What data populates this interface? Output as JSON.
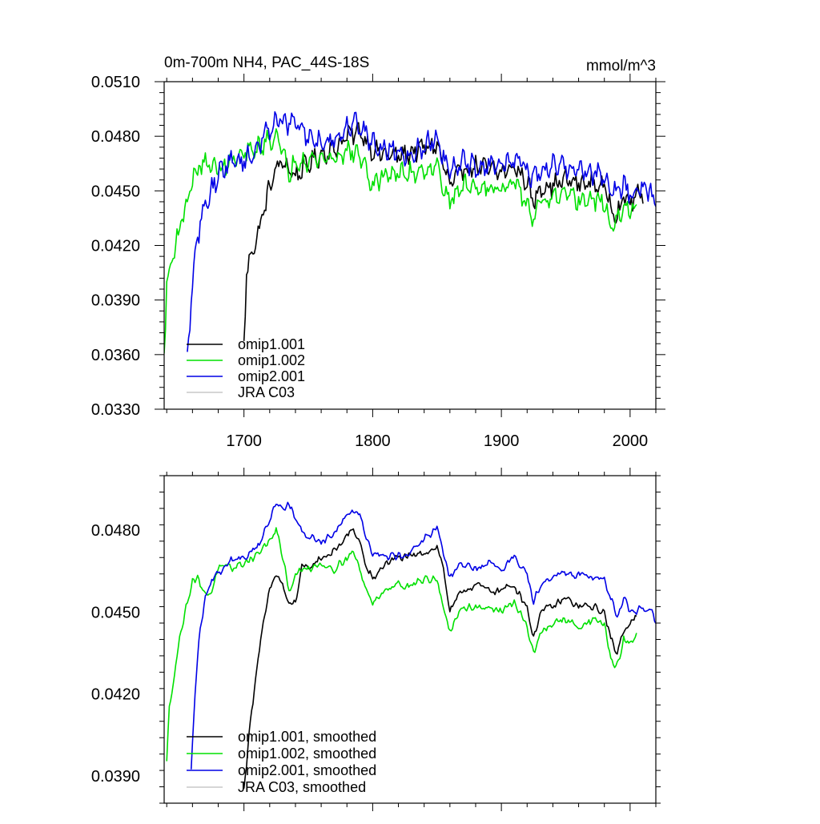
{
  "chart_data": [
    {
      "type": "line",
      "title": "0m-700m NH4, PAC_44S-18S",
      "units": "mmol/m^3",
      "xlabel": "",
      "ylabel": "",
      "xlim": [
        1638,
        2020
      ],
      "ylim": [
        0.033,
        0.051
      ],
      "xticks": [
        1700,
        1800,
        1900,
        2000
      ],
      "xtick_labels": [
        "1700",
        "1800",
        "1900",
        "2000"
      ],
      "yticks": [
        0.033,
        0.036,
        0.039,
        0.042,
        0.045,
        0.048,
        0.051
      ],
      "ytick_labels": [
        "0.0330",
        "0.0360",
        "0.0390",
        "0.0420",
        "0.0450",
        "0.0480",
        "0.0510"
      ],
      "legend_position": "bottom-left",
      "series": [
        {
          "name": "omip1.001",
          "color": "#000000",
          "noise": 0.0007,
          "x": [
            1700,
            1702,
            1705,
            1710,
            1715,
            1720,
            1725,
            1730,
            1740,
            1750,
            1760,
            1770,
            1780,
            1790,
            1800,
            1810,
            1820,
            1830,
            1840,
            1850,
            1860,
            1870,
            1880,
            1890,
            1900,
            1910,
            1920,
            1925,
            1930,
            1940,
            1950,
            1960,
            1970,
            1980,
            1985,
            1990,
            1995,
            2000,
            2005,
            2010
          ],
          "values": [
            0.0366,
            0.0405,
            0.0414,
            0.0424,
            0.0438,
            0.0452,
            0.0462,
            0.0466,
            0.0458,
            0.0465,
            0.047,
            0.0473,
            0.048,
            0.0483,
            0.0472,
            0.047,
            0.0469,
            0.0471,
            0.0474,
            0.0475,
            0.0453,
            0.0462,
            0.0463,
            0.0462,
            0.046,
            0.0463,
            0.0455,
            0.0443,
            0.0452,
            0.0453,
            0.0456,
            0.0454,
            0.0454,
            0.0452,
            0.0442,
            0.0437,
            0.0446,
            0.0444,
            0.0447,
            0.0448
          ]
        },
        {
          "name": "omip1.002",
          "color": "#00e000",
          "noise": 0.0007,
          "x": [
            1638,
            1640,
            1643,
            1646,
            1650,
            1655,
            1660,
            1665,
            1670,
            1680,
            1690,
            1700,
            1710,
            1720,
            1725,
            1730,
            1735,
            1740,
            1750,
            1760,
            1770,
            1780,
            1790,
            1800,
            1810,
            1820,
            1830,
            1840,
            1850,
            1860,
            1870,
            1880,
            1890,
            1900,
            1910,
            1920,
            1925,
            1930,
            1940,
            1950,
            1960,
            1970,
            1980,
            1985,
            1990,
            1995,
            2000,
            2005
          ],
          "values": [
            0.0362,
            0.0395,
            0.041,
            0.0418,
            0.043,
            0.0442,
            0.0456,
            0.0463,
            0.0465,
            0.0462,
            0.0466,
            0.047,
            0.0473,
            0.0478,
            0.0481,
            0.047,
            0.046,
            0.0467,
            0.0467,
            0.0468,
            0.0468,
            0.0472,
            0.047,
            0.0452,
            0.046,
            0.0459,
            0.046,
            0.0462,
            0.0463,
            0.0443,
            0.0453,
            0.0452,
            0.0453,
            0.045,
            0.0454,
            0.0443,
            0.0434,
            0.0443,
            0.0446,
            0.0447,
            0.0445,
            0.0445,
            0.0444,
            0.043,
            0.0433,
            0.044,
            0.044,
            0.0442
          ]
        },
        {
          "name": "omip2.001",
          "color": "#0000e6",
          "noise": 0.00075,
          "x": [
            1656,
            1660,
            1664,
            1668,
            1672,
            1676,
            1680,
            1690,
            1700,
            1705,
            1710,
            1720,
            1725,
            1730,
            1735,
            1740,
            1745,
            1750,
            1760,
            1770,
            1780,
            1785,
            1790,
            1800,
            1810,
            1820,
            1830,
            1840,
            1845,
            1850,
            1860,
            1870,
            1880,
            1890,
            1900,
            1910,
            1920,
            1925,
            1930,
            1940,
            1950,
            1960,
            1970,
            1980,
            1985,
            1990,
            1995,
            2000,
            2005,
            2010,
            2015,
            2020
          ],
          "values": [
            0.036,
            0.0398,
            0.0425,
            0.0438,
            0.0446,
            0.0452,
            0.046,
            0.0466,
            0.0467,
            0.0468,
            0.0474,
            0.0484,
            0.049,
            0.0488,
            0.0486,
            0.0489,
            0.0483,
            0.048,
            0.0477,
            0.0478,
            0.0484,
            0.0488,
            0.0486,
            0.0476,
            0.0473,
            0.0472,
            0.047,
            0.0474,
            0.0478,
            0.0476,
            0.046,
            0.0466,
            0.0463,
            0.0464,
            0.0464,
            0.0468,
            0.0462,
            0.0456,
            0.046,
            0.0464,
            0.0463,
            0.0462,
            0.046,
            0.0458,
            0.0452,
            0.0449,
            0.0454,
            0.0448,
            0.0449,
            0.045,
            0.045,
            0.0444
          ]
        },
        {
          "name": "JRA C03",
          "color": "#c8c8c8",
          "noise": 0,
          "x": [],
          "values": []
        }
      ]
    },
    {
      "type": "line",
      "title": "",
      "xlabel": "",
      "ylabel": "",
      "xlim": [
        1638,
        2020
      ],
      "ylim": [
        0.038,
        0.05
      ],
      "xticks": [
        1700,
        1800,
        1900,
        2000
      ],
      "xtick_labels": [],
      "yticks": [
        0.039,
        0.042,
        0.045,
        0.048
      ],
      "ytick_labels": [
        "0.0390",
        "0.0420",
        "0.0450",
        "0.0480"
      ],
      "legend_position": "bottom-left",
      "series": [
        {
          "name": "omip1.001, smoothed",
          "color": "#000000",
          "noise": 0.00018,
          "x": [
            1700,
            1705,
            1710,
            1715,
            1720,
            1725,
            1730,
            1735,
            1740,
            1745,
            1750,
            1760,
            1770,
            1780,
            1785,
            1790,
            1795,
            1800,
            1810,
            1820,
            1830,
            1840,
            1850,
            1855,
            1860,
            1870,
            1880,
            1890,
            1900,
            1910,
            1920,
            1925,
            1930,
            1940,
            1950,
            1960,
            1970,
            1980,
            1985,
            1990,
            1995,
            2000,
            2005
          ],
          "values": [
            0.0385,
            0.041,
            0.043,
            0.0445,
            0.0458,
            0.0464,
            0.046,
            0.0452,
            0.0454,
            0.0466,
            0.0466,
            0.047,
            0.0472,
            0.0478,
            0.048,
            0.0476,
            0.0466,
            0.0462,
            0.0468,
            0.047,
            0.047,
            0.0472,
            0.0474,
            0.0466,
            0.045,
            0.0458,
            0.046,
            0.0458,
            0.0458,
            0.046,
            0.0452,
            0.044,
            0.045,
            0.0452,
            0.0455,
            0.0452,
            0.0452,
            0.045,
            0.044,
            0.0435,
            0.0444,
            0.0446,
            0.0448
          ]
        },
        {
          "name": "omip1.002, smoothed",
          "color": "#00e000",
          "noise": 0.00018,
          "x": [
            1640,
            1642,
            1645,
            1650,
            1655,
            1660,
            1665,
            1670,
            1675,
            1680,
            1690,
            1700,
            1710,
            1720,
            1725,
            1730,
            1735,
            1740,
            1750,
            1760,
            1770,
            1780,
            1785,
            1790,
            1795,
            1800,
            1810,
            1820,
            1830,
            1840,
            1850,
            1860,
            1870,
            1880,
            1890,
            1900,
            1910,
            1920,
            1925,
            1930,
            1940,
            1950,
            1960,
            1970,
            1980,
            1985,
            1990,
            1995,
            2000,
            2005
          ],
          "values": [
            0.0395,
            0.0415,
            0.0425,
            0.044,
            0.0452,
            0.0462,
            0.0462,
            0.0456,
            0.0458,
            0.0466,
            0.0466,
            0.0468,
            0.0471,
            0.0476,
            0.048,
            0.047,
            0.0458,
            0.0464,
            0.0466,
            0.0468,
            0.0466,
            0.047,
            0.0472,
            0.0466,
            0.0458,
            0.0453,
            0.0459,
            0.046,
            0.046,
            0.0462,
            0.0462,
            0.0442,
            0.0452,
            0.0452,
            0.0452,
            0.045,
            0.0454,
            0.0444,
            0.0435,
            0.0442,
            0.0446,
            0.0447,
            0.0445,
            0.0447,
            0.0446,
            0.0432,
            0.043,
            0.044,
            0.0438,
            0.0442
          ]
        },
        {
          "name": "omip2.001, smoothed",
          "color": "#0000e6",
          "noise": 0.00018,
          "x": [
            1659,
            1662,
            1665,
            1670,
            1675,
            1680,
            1685,
            1690,
            1700,
            1705,
            1710,
            1715,
            1720,
            1725,
            1730,
            1735,
            1740,
            1745,
            1750,
            1760,
            1770,
            1780,
            1785,
            1790,
            1795,
            1800,
            1810,
            1820,
            1830,
            1840,
            1850,
            1860,
            1870,
            1880,
            1890,
            1900,
            1910,
            1920,
            1925,
            1930,
            1940,
            1950,
            1960,
            1970,
            1980,
            1985,
            1990,
            1995,
            2000,
            2005,
            2010,
            2015,
            2020
          ],
          "values": [
            0.0392,
            0.042,
            0.044,
            0.0455,
            0.0462,
            0.0465,
            0.0466,
            0.047,
            0.047,
            0.0472,
            0.0474,
            0.0478,
            0.0484,
            0.049,
            0.0488,
            0.049,
            0.0484,
            0.0479,
            0.0478,
            0.0476,
            0.0479,
            0.0486,
            0.0488,
            0.0486,
            0.0478,
            0.0472,
            0.047,
            0.0471,
            0.0472,
            0.0477,
            0.048,
            0.0463,
            0.0468,
            0.0466,
            0.0468,
            0.0466,
            0.047,
            0.0464,
            0.0454,
            0.046,
            0.0464,
            0.0464,
            0.0464,
            0.0463,
            0.0462,
            0.0455,
            0.0448,
            0.0456,
            0.045,
            0.045,
            0.0452,
            0.0452,
            0.0447
          ]
        },
        {
          "name": "JRA C03, smoothed",
          "color": "#c8c8c8",
          "noise": 0,
          "x": [],
          "values": []
        }
      ]
    }
  ]
}
